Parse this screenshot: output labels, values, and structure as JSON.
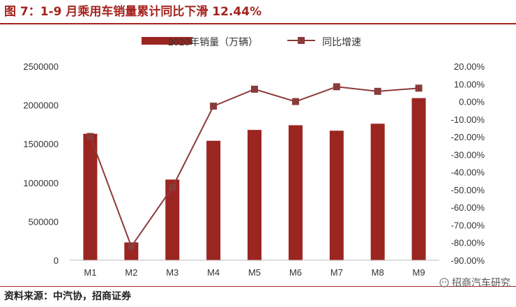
{
  "figure": {
    "title": "图 7：1-9 月乘用车销量累计同比下滑 12.44%",
    "source": "资料来源：中汽协，招商证券",
    "watermark": "招商汽车研究"
  },
  "colors": {
    "bar": "#9b2520",
    "line": "#8b3a3a",
    "title": "#a4241f"
  },
  "chart_data": {
    "type": "bar",
    "categories": [
      "M1",
      "M2",
      "M3",
      "M4",
      "M5",
      "M6",
      "M7",
      "M8",
      "M9"
    ],
    "series": [
      {
        "name": "2020年销量（万辆）",
        "type": "bar",
        "axis": "left",
        "values": [
          1630000,
          230000,
          1040000,
          1540000,
          1680000,
          1740000,
          1670000,
          1760000,
          2090000
        ]
      },
      {
        "name": "同比增速",
        "type": "line",
        "axis": "right",
        "values": [
          -19.8,
          -82.2,
          -48.7,
          -2.6,
          7.0,
          0.0,
          8.4,
          5.8,
          7.6
        ]
      }
    ],
    "ylim_left": [
      0,
      2500000
    ],
    "yticks_left": [
      "2500000",
      "2000000",
      "1500000",
      "1000000",
      "500000",
      "0"
    ],
    "ylim_right": [
      -90,
      20
    ],
    "yticks_right": [
      "20.00%",
      "10.00%",
      "0.00%",
      "-10.00%",
      "-20.00%",
      "-30.00%",
      "-40.00%",
      "-50.00%",
      "-60.00%",
      "-70.00%",
      "-80.00%",
      "-90.00%"
    ],
    "legend_position": "top-center",
    "grid": false
  }
}
